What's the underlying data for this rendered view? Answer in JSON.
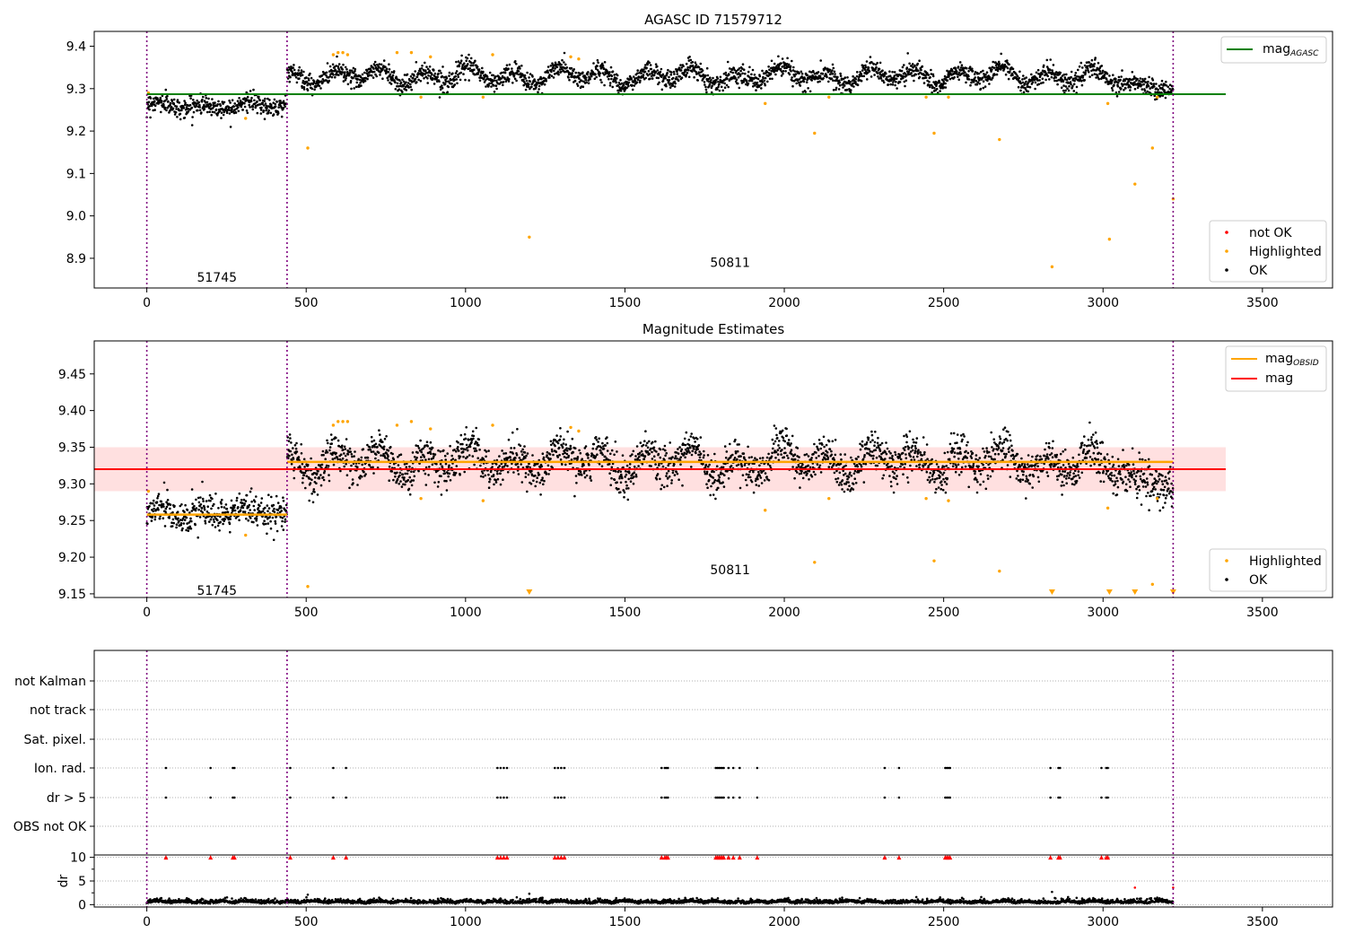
{
  "chart_data": [
    {
      "type": "scatter",
      "title": "AGASC ID 71579712",
      "xlim": [
        -165,
        3720
      ],
      "ylim": [
        8.83,
        9.435
      ],
      "xticks": [
        0,
        500,
        1000,
        1500,
        2000,
        2500,
        3000,
        3500
      ],
      "yticks": [
        "8.9",
        "9.0",
        "9.1",
        "9.2",
        "9.3",
        "9.4"
      ],
      "mag_agasc": 9.287,
      "mag_agasc_range": [
        0,
        3385
      ],
      "obsid_boundaries": [
        0,
        440,
        3220
      ],
      "obsid_labels": [
        {
          "text": "51745",
          "x": 220,
          "y": 8.855
        },
        {
          "text": "50811",
          "x": 1830,
          "y": 8.89
        }
      ],
      "segments": [
        {
          "x": [
            0,
            440
          ],
          "mean": 9.26,
          "amp": 0.006,
          "noise": 0.011
        },
        {
          "x": [
            440,
            3220
          ],
          "mean": 9.33,
          "amp": 0.015,
          "noise": 0.011,
          "tail_to": 9.295
        }
      ],
      "highlighted": [
        [
          5,
          9.29
        ],
        [
          310,
          9.23
        ],
        [
          505,
          9.16
        ],
        [
          585,
          9.38
        ],
        [
          600,
          9.385
        ],
        [
          615,
          9.385
        ],
        [
          630,
          9.38
        ],
        [
          785,
          9.385
        ],
        [
          830,
          9.385
        ],
        [
          860,
          9.28
        ],
        [
          890,
          9.375
        ],
        [
          1055,
          9.28
        ],
        [
          1085,
          9.38
        ],
        [
          1200,
          8.95
        ],
        [
          1330,
          9.375
        ],
        [
          1355,
          9.37
        ],
        [
          1940,
          9.265
        ],
        [
          2095,
          9.195
        ],
        [
          2140,
          9.28
        ],
        [
          2445,
          9.28
        ],
        [
          2470,
          9.195
        ],
        [
          2515,
          9.28
        ],
        [
          2675,
          9.18
        ],
        [
          2840,
          8.88
        ],
        [
          3015,
          9.265
        ],
        [
          3020,
          8.945
        ],
        [
          3100,
          9.075
        ],
        [
          3155,
          9.16
        ],
        [
          3170,
          9.28
        ],
        [
          3220,
          9.04
        ]
      ],
      "legend_lines": [
        {
          "label": "mag",
          "sub": "AGASC",
          "color": "#008000"
        }
      ],
      "legend_points": [
        {
          "label": "not OK",
          "color": "#ff0000"
        },
        {
          "label": "Highlighted",
          "color": "#ffa500"
        },
        {
          "label": "OK",
          "color": "#000000"
        }
      ]
    },
    {
      "type": "scatter",
      "title": "Magnitude Estimates",
      "xlim": [
        -165,
        3720
      ],
      "ylim": [
        9.145,
        9.495
      ],
      "xticks": [
        0,
        500,
        1000,
        1500,
        2000,
        2500,
        3000,
        3500
      ],
      "yticks": [
        "9.15",
        "9.20",
        "9.25",
        "9.30",
        "9.35",
        "9.40",
        "9.45"
      ],
      "mag": 9.32,
      "mag_band": [
        9.29,
        9.35
      ],
      "mag_range": [
        -165,
        3385
      ],
      "mag_obsid": [
        {
          "x": [
            0,
            440
          ],
          "y": 9.258
        },
        {
          "x": [
            440,
            3220
          ],
          "y": 9.33
        }
      ],
      "obsid_boundaries": [
        0,
        440,
        3220
      ],
      "obsid_labels": [
        {
          "text": "51745",
          "x": 220,
          "y": 9.155
        },
        {
          "text": "50811",
          "x": 1830,
          "y": 9.183
        }
      ],
      "segments": [
        {
          "x": [
            0,
            440
          ],
          "mean": 9.26,
          "amp": 0.006,
          "noise": 0.011
        },
        {
          "x": [
            440,
            3220
          ],
          "mean": 9.33,
          "amp": 0.015,
          "noise": 0.013,
          "tail_to": 9.295
        }
      ],
      "highlighted": [
        [
          5,
          9.29
        ],
        [
          310,
          9.23
        ],
        [
          505,
          9.16
        ],
        [
          585,
          9.38
        ],
        [
          600,
          9.385
        ],
        [
          615,
          9.385
        ],
        [
          630,
          9.385
        ],
        [
          785,
          9.38
        ],
        [
          830,
          9.385
        ],
        [
          860,
          9.28
        ],
        [
          890,
          9.375
        ],
        [
          1055,
          9.277
        ],
        [
          1085,
          9.38
        ],
        [
          1330,
          9.377
        ],
        [
          1355,
          9.372
        ],
        [
          1940,
          9.264
        ],
        [
          2095,
          9.193
        ],
        [
          2140,
          9.28
        ],
        [
          2445,
          9.28
        ],
        [
          2470,
          9.195
        ],
        [
          2515,
          9.277
        ],
        [
          2675,
          9.181
        ],
        [
          3015,
          9.267
        ],
        [
          3155,
          9.163
        ],
        [
          3170,
          9.28
        ]
      ],
      "below_range_markers": [
        1200,
        2840,
        3020,
        3100,
        3220
      ],
      "legend_lines": [
        {
          "label": "mag",
          "sub": "OBSID",
          "color": "#ffa500"
        },
        {
          "label": "mag",
          "sub": "",
          "color": "#ff0000"
        }
      ],
      "legend_points": [
        {
          "label": "Highlighted",
          "color": "#ffa500"
        },
        {
          "label": "OK",
          "color": "#000000"
        }
      ]
    },
    {
      "type": "scatter",
      "title": "",
      "xlim": [
        -165,
        3720
      ],
      "xticks": [
        0,
        500,
        1000,
        1500,
        2000,
        2500,
        3000,
        3500
      ],
      "flag_rows": [
        "not Kalman",
        "not track",
        "Sat. pixel.",
        "Ion. rad.",
        "dr > 5",
        "OBS not OK"
      ],
      "flag_events": [
        60,
        200,
        270,
        275,
        450,
        585,
        625,
        1100,
        1110,
        1120,
        1130,
        1280,
        1290,
        1300,
        1310,
        1615,
        1625,
        1630,
        1635,
        1785,
        1790,
        1795,
        1800,
        1805,
        1810,
        1825,
        1840,
        1860,
        1915,
        2315,
        2360,
        2505,
        2510,
        2515,
        2520,
        2835,
        2860,
        2865,
        2995,
        3010,
        3015
      ],
      "dr_ylabel": "dr",
      "dr_ylim": [
        -0.5,
        10.5
      ],
      "dr_yticks": [
        "0",
        "5",
        "10"
      ],
      "dr_clipped_value": 10,
      "dr_outliers": [
        [
          505,
          2.1
        ],
        [
          1200,
          2.3
        ],
        [
          2840,
          2.7
        ],
        [
          3100,
          3.6
        ],
        [
          3220,
          3.6
        ]
      ],
      "obsid_boundaries": [
        0,
        440,
        3220
      ]
    }
  ]
}
